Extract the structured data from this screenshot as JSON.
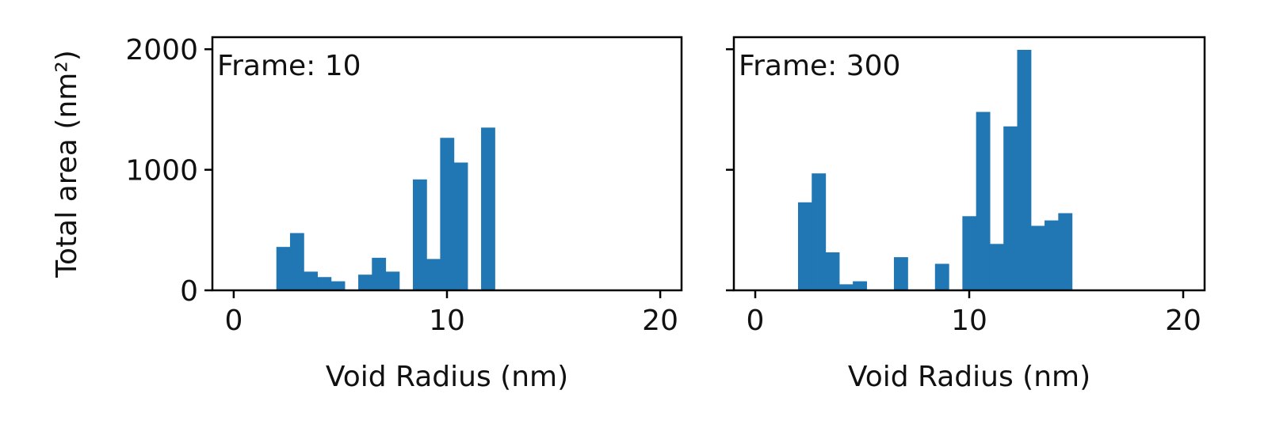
{
  "colors": {
    "bar": "#2077b4",
    "frame": "#000000",
    "background": "#ffffff"
  },
  "chart_data": [
    {
      "type": "bar",
      "panel_label": "Frame: 10",
      "xlabel": "Void Radius (nm)",
      "ylabel": "Total area (nm²)",
      "xlim": [
        -1,
        21
      ],
      "ylim": [
        0,
        2100
      ],
      "xticks": [
        0,
        10,
        20
      ],
      "yticks": [
        0,
        1000,
        2000
      ],
      "ytick_labels_visible": true,
      "bin_width": 0.64,
      "bins": [
        {
          "x": 2.0,
          "value": 360
        },
        {
          "x": 2.64,
          "value": 475
        },
        {
          "x": 3.28,
          "value": 155
        },
        {
          "x": 3.92,
          "value": 110
        },
        {
          "x": 4.56,
          "value": 75
        },
        {
          "x": 5.2,
          "value": 0
        },
        {
          "x": 5.84,
          "value": 130
        },
        {
          "x": 6.48,
          "value": 270
        },
        {
          "x": 7.12,
          "value": 155
        },
        {
          "x": 7.76,
          "value": 0
        },
        {
          "x": 8.4,
          "value": 920
        },
        {
          "x": 9.04,
          "value": 260
        },
        {
          "x": 9.68,
          "value": 1265
        },
        {
          "x": 10.32,
          "value": 1060
        },
        {
          "x": 10.96,
          "value": 0
        },
        {
          "x": 11.6,
          "value": 1350
        }
      ]
    },
    {
      "type": "bar",
      "panel_label": "Frame: 300",
      "xlabel": "Void Radius (nm)",
      "ylabel": "",
      "xlim": [
        -1,
        21
      ],
      "ylim": [
        0,
        2100
      ],
      "xticks": [
        0,
        10,
        20
      ],
      "yticks": [
        0,
        1000,
        2000
      ],
      "ytick_labels_visible": false,
      "bin_width": 0.64,
      "bins": [
        {
          "x": 2.0,
          "value": 730
        },
        {
          "x": 2.64,
          "value": 970
        },
        {
          "x": 3.28,
          "value": 315
        },
        {
          "x": 3.92,
          "value": 50
        },
        {
          "x": 4.56,
          "value": 75
        },
        {
          "x": 5.2,
          "value": 0
        },
        {
          "x": 5.84,
          "value": 0
        },
        {
          "x": 6.48,
          "value": 275
        },
        {
          "x": 7.12,
          "value": 0
        },
        {
          "x": 7.76,
          "value": 0
        },
        {
          "x": 8.4,
          "value": 220
        },
        {
          "x": 9.04,
          "value": 0
        },
        {
          "x": 9.68,
          "value": 615
        },
        {
          "x": 10.32,
          "value": 1480
        },
        {
          "x": 10.96,
          "value": 385
        },
        {
          "x": 11.6,
          "value": 1360
        },
        {
          "x": 12.24,
          "value": 1995
        },
        {
          "x": 12.88,
          "value": 535
        },
        {
          "x": 13.52,
          "value": 580
        },
        {
          "x": 14.16,
          "value": 640
        }
      ]
    }
  ]
}
